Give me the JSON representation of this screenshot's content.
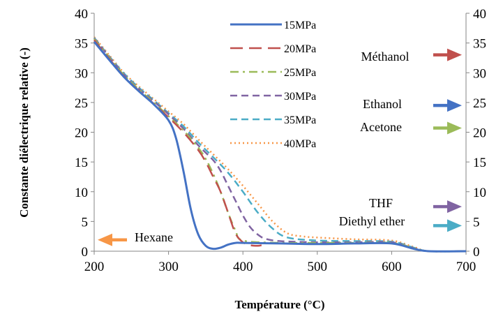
{
  "chart_data": {
    "type": "line",
    "title": "",
    "xlabel": "Température (°C)",
    "ylabel": "Constante diélectrique relative (-)",
    "xlim": [
      200,
      700
    ],
    "ylim": [
      0,
      40
    ],
    "y2lim": [
      0,
      40
    ],
    "xticks": [
      200,
      300,
      400,
      500,
      600,
      700
    ],
    "yticks": [
      0,
      5,
      10,
      15,
      20,
      25,
      30,
      35,
      40
    ],
    "grid": false,
    "legend_position": "top-center",
    "series": [
      {
        "name": "15MPa",
        "color": "#4472C4",
        "dash": "solid",
        "x": [
          200,
          220,
          240,
          260,
          280,
          300,
          310,
          320,
          330,
          340,
          350,
          360,
          370,
          380,
          390,
          400,
          450,
          500,
          550,
          600,
          630,
          650,
          700
        ],
        "y": [
          35.2,
          32.2,
          29.3,
          26.9,
          24.7,
          22.0,
          19.0,
          13.5,
          7.0,
          2.8,
          0.9,
          0.4,
          0.6,
          1.1,
          1.4,
          1.4,
          1.3,
          1.2,
          1.3,
          1.3,
          0.4,
          0.0,
          0.0
        ]
      },
      {
        "name": "20MPa",
        "color": "#C0504D",
        "dash": "long-dash",
        "x": [
          200,
          220,
          240,
          260,
          280,
          300,
          320,
          340,
          350,
          360,
          370,
          380,
          390,
          400,
          410,
          420,
          425
        ],
        "y": [
          35.5,
          32.4,
          29.4,
          27.0,
          24.8,
          22.5,
          20.0,
          17.0,
          15.0,
          12.5,
          10.0,
          6.5,
          3.0,
          1.5,
          1.0,
          0.9,
          1.0
        ]
      },
      {
        "name": "25MPa",
        "color": "#9BBB59",
        "dash": "dash-dot",
        "x": [
          200,
          220,
          240,
          260,
          280,
          300,
          320,
          340,
          350,
          360,
          370,
          380,
          390,
          400,
          450,
          500,
          550,
          600,
          630,
          650,
          700
        ],
        "y": [
          35.7,
          32.6,
          29.6,
          27.2,
          25.0,
          22.7,
          20.3,
          17.4,
          15.5,
          13.0,
          10.0,
          6.5,
          3.5,
          1.8,
          1.4,
          1.4,
          1.4,
          1.4,
          0.5,
          0.0,
          0.0
        ]
      },
      {
        "name": "30MPa",
        "color": "#8064A2",
        "dash": "dash",
        "x": [
          200,
          220,
          240,
          260,
          280,
          300,
          320,
          340,
          360,
          370,
          380,
          390,
          400,
          410,
          420,
          430,
          450,
          500,
          550,
          600,
          630,
          650,
          700
        ],
        "y": [
          35.8,
          32.7,
          29.7,
          27.3,
          25.2,
          23.0,
          20.6,
          17.8,
          15.3,
          13.5,
          11.0,
          8.5,
          6.0,
          4.0,
          2.8,
          2.1,
          1.7,
          1.5,
          1.5,
          1.5,
          0.5,
          0.0,
          0.0
        ]
      },
      {
        "name": "35MPa",
        "color": "#4BACC6",
        "dash": "dash",
        "x": [
          200,
          220,
          240,
          260,
          280,
          300,
          320,
          340,
          360,
          380,
          400,
          420,
          440,
          460,
          500,
          550,
          600,
          630,
          650,
          700
        ],
        "y": [
          35.9,
          32.8,
          29.9,
          27.5,
          25.4,
          23.2,
          21.0,
          18.3,
          15.8,
          13.2,
          10.0,
          6.5,
          3.8,
          2.3,
          1.8,
          1.7,
          1.6,
          0.6,
          0.0,
          0.0
        ]
      },
      {
        "name": "40MPa",
        "color": "#F79646",
        "dash": "dot",
        "x": [
          200,
          220,
          240,
          260,
          280,
          300,
          320,
          340,
          360,
          380,
          400,
          420,
          440,
          460,
          480,
          500,
          550,
          600,
          630,
          650,
          700
        ],
        "y": [
          36.0,
          33.0,
          30.0,
          27.7,
          25.6,
          23.5,
          21.4,
          18.8,
          16.3,
          13.8,
          11.0,
          8.0,
          5.0,
          3.0,
          2.5,
          2.3,
          2.0,
          1.8,
          0.7,
          0.0,
          0.0
        ]
      }
    ],
    "annotations": [
      {
        "label": "Méthanol",
        "value": 33,
        "color": "#C0504D",
        "side": "right"
      },
      {
        "label": "Ethanol",
        "value": 24.5,
        "color": "#4472C4",
        "side": "right"
      },
      {
        "label": "Acetone",
        "value": 20.7,
        "color": "#9BBB59",
        "side": "right"
      },
      {
        "label": "THF",
        "value": 7.5,
        "color": "#8064A2",
        "side": "right"
      },
      {
        "label": "Diethyl ether",
        "value": 4.3,
        "color": "#4BACC6",
        "side": "right"
      },
      {
        "label": "Hexane",
        "value": 1.9,
        "color": "#F79646",
        "side": "left"
      }
    ]
  }
}
